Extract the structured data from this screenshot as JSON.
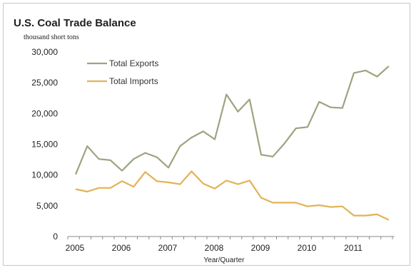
{
  "chart_data": {
    "type": "line",
    "title": "U.S. Coal Trade Balance",
    "ylabel": "thousand short tons",
    "xlabel": "Year/Quarter",
    "ylim": [
      0,
      30000
    ],
    "yticks": [
      "0",
      "5,000",
      "10,000",
      "15,000",
      "20,000",
      "25,000",
      "30,000"
    ],
    "ytick_values": [
      0,
      5000,
      10000,
      15000,
      20000,
      25000,
      30000
    ],
    "years": [
      "2005",
      "2006",
      "2007",
      "2008",
      "2009",
      "2010",
      "2011"
    ],
    "grid": false,
    "legend_position": "top-left",
    "x": [
      "2005 Q1",
      "2005 Q2",
      "2005 Q3",
      "2005 Q4",
      "2006 Q1",
      "2006 Q2",
      "2006 Q3",
      "2006 Q4",
      "2007 Q1",
      "2007 Q2",
      "2007 Q3",
      "2007 Q4",
      "2008 Q1",
      "2008 Q2",
      "2008 Q3",
      "2008 Q4",
      "2009 Q1",
      "2009 Q2",
      "2009 Q3",
      "2009 Q4",
      "2010 Q1",
      "2010 Q2",
      "2010 Q3",
      "2010 Q4",
      "2011 Q1",
      "2011 Q2",
      "2011 Q3",
      "2011 Q4"
    ],
    "series": [
      {
        "name": "Total Exports",
        "color": "#9ea37f",
        "values": [
          10100,
          14700,
          12600,
          12400,
          10700,
          12600,
          13600,
          12900,
          11200,
          14700,
          16100,
          17100,
          15800,
          23100,
          20300,
          22300,
          13300,
          13000,
          15100,
          17600,
          17800,
          21900,
          21000,
          20900,
          26600,
          27000,
          26000,
          27700
        ]
      },
      {
        "name": "Total Imports",
        "color": "#e2b255",
        "values": [
          7700,
          7300,
          7900,
          7900,
          9000,
          8100,
          10500,
          9000,
          8800,
          8500,
          10600,
          8600,
          7800,
          9100,
          8500,
          9100,
          6300,
          5500,
          5500,
          5500,
          4900,
          5100,
          4800,
          4900,
          3400,
          3400,
          3600,
          2700
        ]
      }
    ]
  }
}
